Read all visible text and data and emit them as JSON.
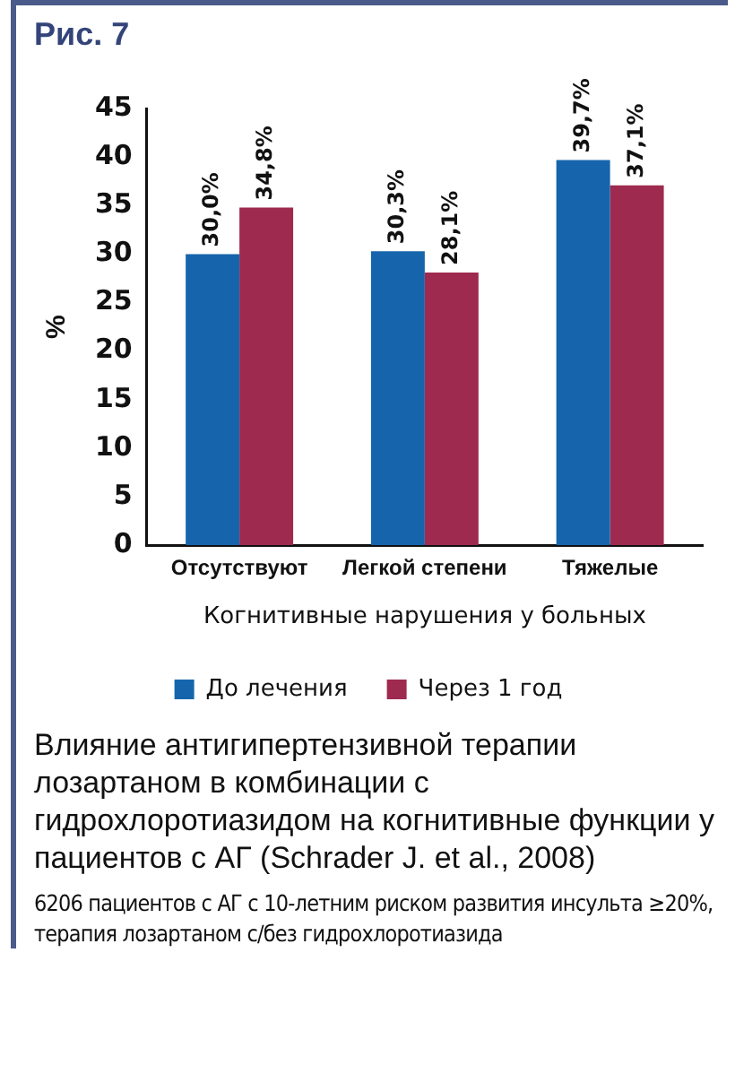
{
  "chart_data": {
    "type": "bar",
    "title": "Рис. 7",
    "xlabel": "Когнитивные нарушения у больных",
    "ylabel": "%",
    "categories": [
      "Отсутствуют",
      "Легкой степени",
      "Тяжелые"
    ],
    "series": [
      {
        "name": "До лечения",
        "color": "#1665ac",
        "values": [
          30.0,
          30.3,
          39.7
        ],
        "value_labels": [
          "30,0%",
          "30,3%",
          "39,7%"
        ]
      },
      {
        "name": "Через 1 год",
        "color": "#9e2a4f",
        "values": [
          34.8,
          28.1,
          37.1
        ],
        "value_labels": [
          "34,8%",
          "28,1%",
          "37,1%"
        ]
      }
    ],
    "ylim": [
      0,
      45
    ],
    "yticks": [
      0,
      5,
      10,
      15,
      20,
      25,
      30,
      35,
      40,
      45
    ],
    "grid": false,
    "legend": "bottom",
    "annotations": [
      "Влияние антигипертензивной терапии лозартаном в комбинации с гидрохлоротиазидом на когнитивные функции у пациентов с АГ (Schrader J. et al., 2008)",
      "6206 пациентов с АГ с 10-летним риском развития инсульта ≥20%, терапия лозартаном с/без гидрохлоротиазида"
    ]
  }
}
